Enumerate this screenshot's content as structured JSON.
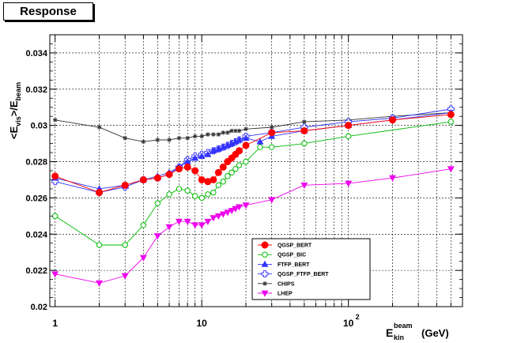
{
  "panel": {
    "title": "Response"
  },
  "chart_data": {
    "type": "line",
    "title": "Response",
    "xlabel": {
      "main": "E",
      "sup": "beam",
      "sub": "kin",
      "unit": "(GeV)"
    },
    "ylabel": {
      "prefix": "<E",
      "sub1": "vis",
      "mid": ">/E",
      "sub2": "beam"
    },
    "xscale": "log",
    "xlim": [
      0.92,
      600
    ],
    "ylim": [
      0.02,
      0.035
    ],
    "grid": true,
    "legend_position": "bottom-right",
    "yticks": [
      "0.02",
      "0.022",
      "0.024",
      "0.026",
      "0.028",
      "0.03",
      "0.032",
      "0.034"
    ],
    "xticks": [
      {
        "value": 1,
        "label": "1"
      },
      {
        "value": 10,
        "label": "10"
      },
      {
        "value": 100,
        "label": "10",
        "sup": "2"
      }
    ],
    "series": [
      {
        "name": "QGSP_BERT",
        "color": "#ff0000",
        "marker": "circle-filled",
        "x": [
          1,
          2,
          3,
          4,
          5,
          6,
          7,
          8,
          9,
          10,
          11,
          12,
          13,
          14,
          15,
          16,
          17,
          18,
          20,
          30,
          50,
          100,
          200,
          500
        ],
        "y": [
          0.0272,
          0.0263,
          0.0267,
          0.027,
          0.0271,
          0.0273,
          0.0276,
          0.0277,
          0.0275,
          0.027,
          0.0269,
          0.027,
          0.0274,
          0.0277,
          0.028,
          0.0282,
          0.0284,
          0.0286,
          0.0289,
          0.0296,
          0.0297,
          0.03,
          0.0303,
          0.0306
        ]
      },
      {
        "name": "QGSP_BIC",
        "color": "#00bb00",
        "marker": "circle-open",
        "x": [
          1,
          2,
          3,
          4,
          5,
          6,
          7,
          8,
          9,
          10,
          11,
          12,
          13,
          14,
          15,
          16,
          17,
          18,
          20,
          25,
          30,
          50,
          100,
          500
        ],
        "y": [
          0.025,
          0.0234,
          0.0234,
          0.0245,
          0.0257,
          0.0262,
          0.0265,
          0.0264,
          0.0261,
          0.026,
          0.0262,
          0.0263,
          0.0267,
          0.0269,
          0.0272,
          0.0274,
          0.0276,
          0.0278,
          0.028,
          0.0288,
          0.0288,
          0.029,
          0.0294,
          0.0302
        ]
      },
      {
        "name": "FTFP_BERT",
        "color": "#3333ff",
        "marker": "triangle-filled",
        "x": [
          1,
          2,
          3,
          4,
          5,
          6,
          7,
          8,
          9,
          10,
          11,
          12,
          13,
          14,
          15,
          16,
          17,
          18,
          20,
          25,
          30,
          50,
          100,
          500
        ],
        "y": [
          0.0271,
          0.0265,
          0.0267,
          0.027,
          0.0272,
          0.0274,
          0.0277,
          0.028,
          0.0282,
          0.0283,
          0.0284,
          0.0286,
          0.0287,
          0.0288,
          0.0289,
          0.029,
          0.0291,
          0.0292,
          0.0293,
          0.0291,
          0.0294,
          0.0297,
          0.03,
          0.0307
        ]
      },
      {
        "name": "QGSP_FTFP_BERT",
        "color": "#3333ff",
        "marker": "cross-open",
        "x": [
          1,
          2,
          3,
          4,
          5,
          6,
          7,
          8,
          9,
          10,
          11,
          12,
          13,
          14,
          15,
          16,
          17,
          18,
          20,
          30,
          50,
          100,
          200,
          500
        ],
        "y": [
          0.0269,
          0.0263,
          0.0266,
          0.027,
          0.0271,
          0.0273,
          0.0277,
          0.0281,
          0.0283,
          0.0284,
          0.0285,
          0.0286,
          0.0287,
          0.0288,
          0.0289,
          0.029,
          0.0291,
          0.0292,
          0.0294,
          0.0296,
          0.0299,
          0.0302,
          0.0304,
          0.0309
        ]
      },
      {
        "name": "CHIPS",
        "color": "#333333",
        "marker": "star",
        "x": [
          1,
          2,
          3,
          4,
          5,
          6,
          7,
          8,
          9,
          10,
          11,
          12,
          13,
          14,
          15,
          16,
          17,
          18,
          20,
          30,
          50,
          100,
          200,
          500
        ],
        "y": [
          0.0303,
          0.0299,
          0.0293,
          0.0291,
          0.0292,
          0.0292,
          0.0293,
          0.0293,
          0.0294,
          0.0294,
          0.0295,
          0.0295,
          0.0295,
          0.0296,
          0.0296,
          0.0297,
          0.0297,
          0.0297,
          0.0298,
          0.0299,
          0.0302,
          0.0303,
          0.0305,
          0.0307
        ]
      },
      {
        "name": "LHEP",
        "color": "#ee00ee",
        "marker": "triangle-down-filled",
        "x": [
          1,
          2,
          3,
          4,
          5,
          6,
          7,
          8,
          9,
          10,
          11,
          12,
          13,
          14,
          15,
          16,
          17,
          18,
          20,
          30,
          50,
          100,
          200,
          500
        ],
        "y": [
          0.0218,
          0.0213,
          0.0217,
          0.0227,
          0.0239,
          0.0244,
          0.0247,
          0.0247,
          0.0245,
          0.0245,
          0.0247,
          0.0249,
          0.025,
          0.0251,
          0.0252,
          0.0253,
          0.0254,
          0.0255,
          0.0256,
          0.0259,
          0.0267,
          0.0268,
          0.0271,
          0.0276
        ]
      }
    ]
  }
}
